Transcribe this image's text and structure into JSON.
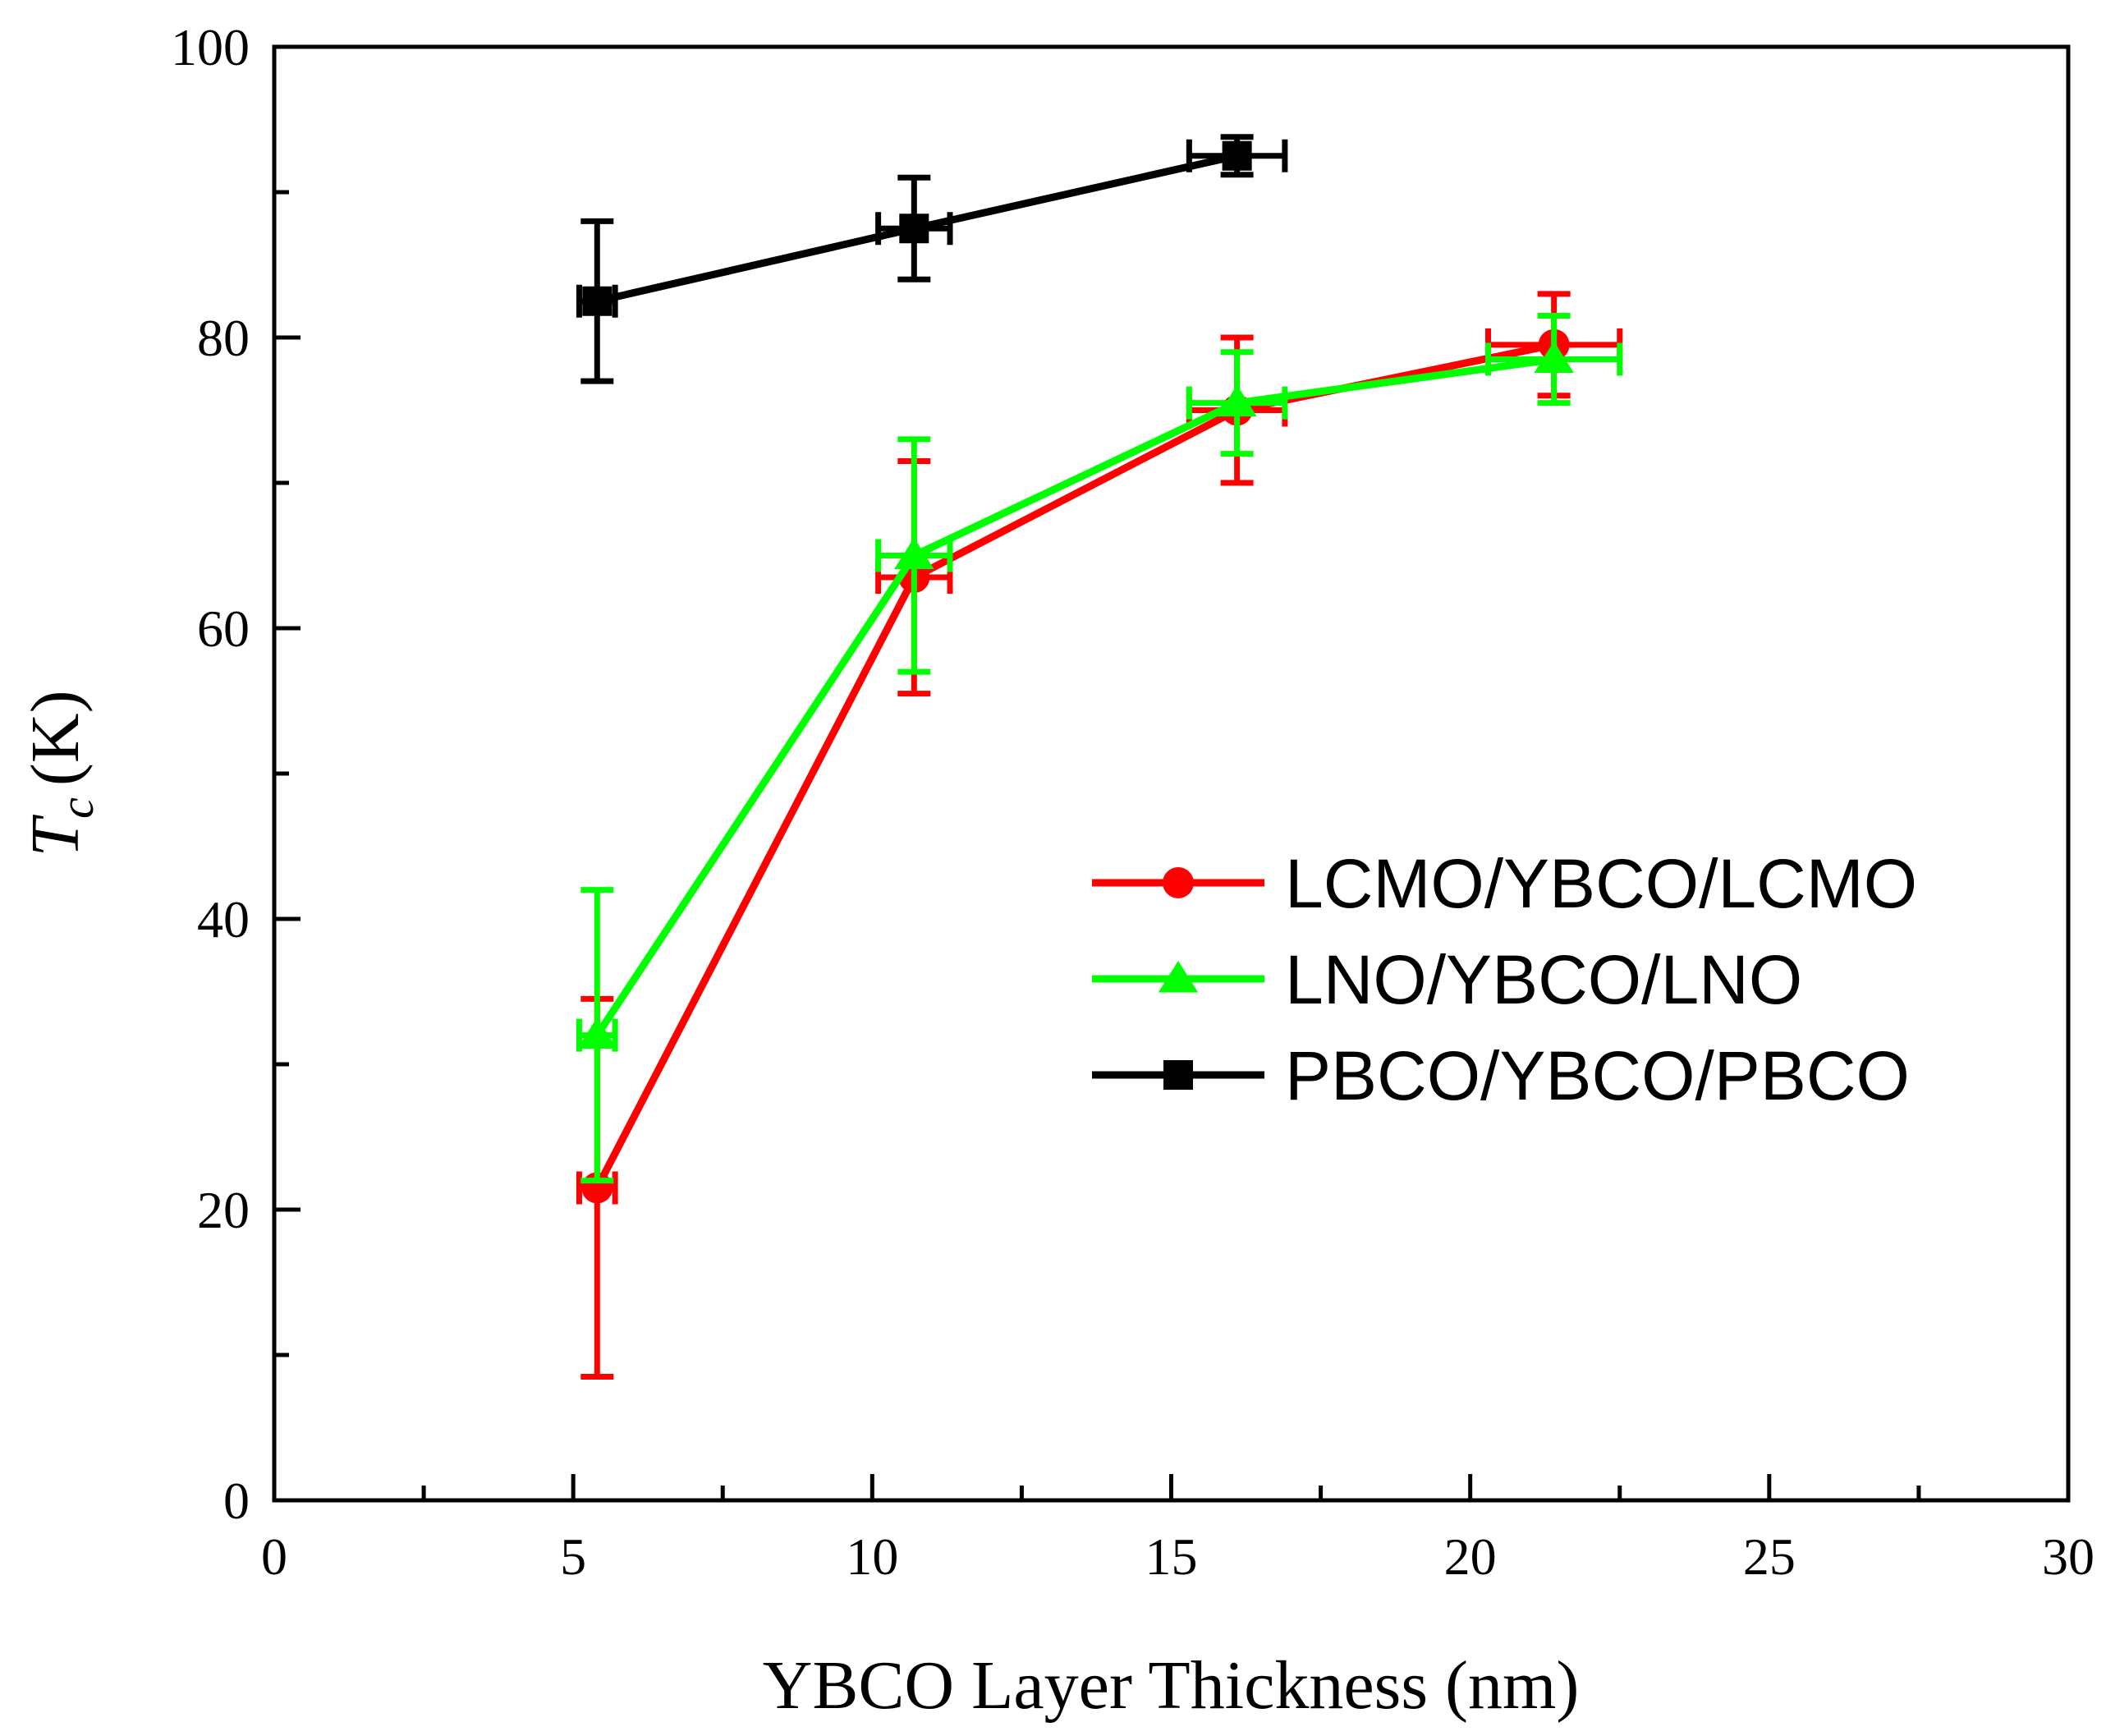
{
  "chart_data": {
    "type": "line",
    "title": "",
    "xlabel": "YBCO Layer Thickness (nm)",
    "ylabel": {
      "main": "T",
      "sub": "c",
      "unit": "(K)"
    },
    "xlim": [
      0,
      30
    ],
    "ylim": [
      0,
      100
    ],
    "x_ticks": [
      0,
      5,
      10,
      15,
      20,
      25,
      30
    ],
    "y_ticks": [
      0,
      20,
      40,
      60,
      80,
      100
    ],
    "x_minor_step": 2.5,
    "y_minor_step": 10,
    "legend_position": "center-right",
    "series": [
      {
        "name": "LCMO/YBCO/LCMO",
        "color": "#ff0000",
        "marker": "circle",
        "points": [
          {
            "x": 5.4,
            "y": 21.5,
            "xerr": 0.3,
            "yerr_low": 13,
            "yerr_high": 13
          },
          {
            "x": 10.7,
            "y": 63.5,
            "xerr": 0.6,
            "yerr_low": 8,
            "yerr_high": 8
          },
          {
            "x": 16.1,
            "y": 75.0,
            "xerr": 0.8,
            "yerr_low": 5,
            "yerr_high": 5
          },
          {
            "x": 21.4,
            "y": 79.5,
            "xerr": 1.1,
            "yerr_low": 3.5,
            "yerr_high": 3.5
          }
        ]
      },
      {
        "name": "LNO/YBCO/LNO",
        "color": "#00ff00",
        "marker": "triangle",
        "points": [
          {
            "x": 5.4,
            "y": 32.0,
            "xerr": 0.3,
            "yerr_low": 10,
            "yerr_high": 10
          },
          {
            "x": 10.7,
            "y": 65.0,
            "xerr": 0.6,
            "yerr_low": 8,
            "yerr_high": 8
          },
          {
            "x": 16.1,
            "y": 75.5,
            "xerr": 0.8,
            "yerr_low": 3.5,
            "yerr_high": 3.5
          },
          {
            "x": 21.4,
            "y": 78.5,
            "xerr": 1.1,
            "yerr_low": 3,
            "yerr_high": 3
          }
        ]
      },
      {
        "name": "PBCO/YBCO/PBCO",
        "color": "#000000",
        "marker": "square",
        "points": [
          {
            "x": 5.4,
            "y": 82.5,
            "xerr": 0.3,
            "yerr_low": 5.5,
            "yerr_high": 5.5
          },
          {
            "x": 10.7,
            "y": 87.5,
            "xerr": 0.6,
            "yerr_low": 3.5,
            "yerr_high": 3.5
          },
          {
            "x": 16.1,
            "y": 92.5,
            "xerr": 0.8,
            "yerr_low": 1.3,
            "yerr_high": 1.3
          }
        ]
      }
    ]
  }
}
